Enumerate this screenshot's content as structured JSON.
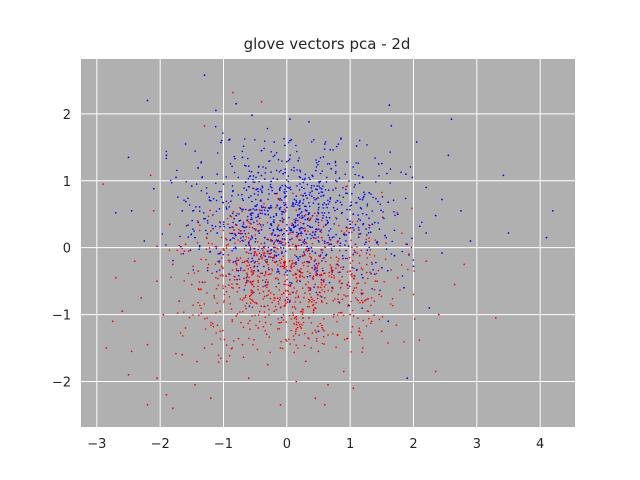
{
  "chart_data": {
    "type": "scatter",
    "title": "glove vectors pca - 2d",
    "xlabel": "",
    "ylabel": "",
    "xlim": [
      -3.25,
      4.55
    ],
    "ylim": [
      -2.68,
      2.82
    ],
    "xticks": [
      -3,
      -2,
      -1,
      0,
      1,
      2,
      3,
      4
    ],
    "yticks": [
      -2,
      -1,
      0,
      1,
      2
    ],
    "xtick_labels": [
      "−3",
      "−2",
      "−1",
      "0",
      "1",
      "2",
      "3",
      "4"
    ],
    "ytick_labels": [
      "−2",
      "−1",
      "0",
      "1",
      "2"
    ],
    "grid": true,
    "background_color": "#b0b0b0",
    "grid_color": "#ffffff",
    "series": [
      {
        "color": "#0000ff",
        "points": [
          [
            -1.3,
            2.58
          ],
          [
            -2.2,
            2.2
          ],
          [
            -0.8,
            2.15
          ],
          [
            1.62,
            2.13
          ],
          [
            -1.12,
            2.05
          ],
          [
            -0.55,
            1.98
          ],
          [
            0.05,
            1.92
          ],
          [
            0.35,
            1.88
          ],
          [
            2.6,
            1.92
          ],
          [
            1.65,
            1.82
          ],
          [
            -1.6,
            1.55
          ],
          [
            -0.9,
            1.62
          ],
          [
            -0.2,
            1.58
          ],
          [
            0.6,
            1.55
          ],
          [
            1.1,
            1.52
          ],
          [
            2.05,
            1.58
          ],
          [
            -1.9,
            1.38
          ],
          [
            -1.35,
            1.28
          ],
          [
            -0.7,
            1.35
          ],
          [
            0.18,
            1.3
          ],
          [
            0.95,
            1.28
          ],
          [
            1.45,
            1.25
          ],
          [
            2.55,
            1.38
          ],
          [
            -2.5,
            1.35
          ],
          [
            -1.75,
            1.05
          ],
          [
            -1.1,
            1.1
          ],
          [
            -0.45,
            1.12
          ],
          [
            0.4,
            1.08
          ],
          [
            1.2,
            1.05
          ],
          [
            1.88,
            1.1
          ],
          [
            3.42,
            1.08
          ],
          [
            -2.1,
            0.88
          ],
          [
            -1.5,
            0.92
          ],
          [
            -0.85,
            0.85
          ],
          [
            -0.1,
            0.9
          ],
          [
            0.55,
            0.88
          ],
          [
            1.3,
            0.82
          ],
          [
            2.2,
            0.9
          ],
          [
            -1.2,
            0.7
          ],
          [
            -0.6,
            0.75
          ],
          [
            0.12,
            0.72
          ],
          [
            0.8,
            0.7
          ],
          [
            1.6,
            0.68
          ],
          [
            2.45,
            0.72
          ],
          [
            -2.7,
            0.52
          ],
          [
            -2.45,
            0.55
          ],
          [
            -1.65,
            0.55
          ],
          [
            -0.95,
            0.58
          ],
          [
            -0.3,
            0.55
          ],
          [
            0.35,
            0.52
          ],
          [
            1.05,
            0.5
          ],
          [
            1.75,
            0.5
          ],
          [
            2.35,
            0.48
          ],
          [
            2.75,
            0.55
          ],
          [
            4.2,
            0.55
          ],
          [
            -1.4,
            0.38
          ],
          [
            -0.75,
            0.4
          ],
          [
            -0.05,
            0.42
          ],
          [
            0.65,
            0.38
          ],
          [
            1.35,
            0.35
          ],
          [
            2.1,
            0.32
          ],
          [
            -1.1,
            0.22
          ],
          [
            -0.45,
            0.25
          ],
          [
            0.2,
            0.28
          ],
          [
            0.9,
            0.2
          ],
          [
            1.55,
            0.18
          ],
          [
            2.2,
            0.22
          ],
          [
            3.5,
            0.22
          ],
          [
            -0.6,
            0.08
          ],
          [
            0.05,
            0.12
          ],
          [
            0.7,
            0.05
          ],
          [
            1.25,
            0.08
          ],
          [
            1.9,
            0.05
          ],
          [
            2.9,
            0.1
          ],
          [
            -2.25,
            0.1
          ],
          [
            4.1,
            0.15
          ],
          [
            -0.2,
            -0.05
          ],
          [
            0.45,
            -0.08
          ],
          [
            1.05,
            -0.1
          ],
          [
            1.7,
            -0.12
          ],
          [
            2.45,
            -0.08
          ],
          [
            0.8,
            -0.25
          ],
          [
            1.5,
            -0.3
          ],
          [
            2.0,
            -0.28
          ],
          [
            1.2,
            -0.45
          ],
          [
            1.85,
            -0.6
          ],
          [
            2.25,
            -0.9
          ],
          [
            1.6,
            -1.1
          ],
          [
            0.5,
            -1.25
          ],
          [
            1.9,
            -1.95
          ],
          [
            -0.5,
            0.62
          ],
          [
            -0.25,
            0.35
          ],
          [
            0.0,
            0.6
          ],
          [
            0.25,
            0.45
          ],
          [
            -0.35,
            0.15
          ],
          [
            0.15,
            0.02
          ],
          [
            -0.8,
            0.48
          ],
          [
            0.5,
            0.65
          ],
          [
            -0.15,
            1.02
          ],
          [
            0.3,
            0.78
          ],
          [
            -0.65,
            0.98
          ],
          [
            1.0,
            0.35
          ],
          [
            -1.0,
            0.95
          ],
          [
            0.7,
            1.18
          ],
          [
            -0.4,
            1.45
          ],
          [
            0.05,
            1.6
          ],
          [
            -1.45,
            0.15
          ],
          [
            -0.9,
            0.3
          ]
        ]
      },
      {
        "color": "#ff0000",
        "points": [
          [
            -0.85,
            2.32
          ],
          [
            -0.4,
            2.18
          ],
          [
            -2.15,
            1.08
          ],
          [
            -1.3,
            1.82
          ],
          [
            -2.9,
            0.95
          ],
          [
            -2.1,
            0.55
          ],
          [
            -1.85,
            0.35
          ],
          [
            -1.2,
            0.25
          ],
          [
            -0.65,
            0.3
          ],
          [
            0.05,
            0.22
          ],
          [
            0.55,
            0.15
          ],
          [
            -2.05,
            0.02
          ],
          [
            -1.55,
            -0.05
          ],
          [
            -1.0,
            -0.02
          ],
          [
            -0.35,
            -0.08
          ],
          [
            0.25,
            -0.12
          ],
          [
            -2.4,
            -0.2
          ],
          [
            -1.8,
            -0.25
          ],
          [
            -1.25,
            -0.3
          ],
          [
            -0.7,
            -0.22
          ],
          [
            -0.1,
            -0.28
          ],
          [
            0.4,
            -0.3
          ],
          [
            1.0,
            -0.35
          ],
          [
            2.8,
            -0.25
          ],
          [
            -2.7,
            -0.45
          ],
          [
            -2.05,
            -0.5
          ],
          [
            -1.5,
            -0.55
          ],
          [
            -0.9,
            -0.48
          ],
          [
            -0.3,
            -0.52
          ],
          [
            0.3,
            -0.55
          ],
          [
            0.85,
            -0.6
          ],
          [
            1.4,
            -0.5
          ],
          [
            2.65,
            -0.55
          ],
          [
            -2.3,
            -0.75
          ],
          [
            -1.7,
            -0.8
          ],
          [
            -1.15,
            -0.72
          ],
          [
            -0.55,
            -0.78
          ],
          [
            0.05,
            -0.8
          ],
          [
            0.6,
            -0.75
          ],
          [
            1.2,
            -0.82
          ],
          [
            2.0,
            -0.7
          ],
          [
            -2.6,
            -0.95
          ],
          [
            -1.95,
            -1.0
          ],
          [
            -1.35,
            -0.98
          ],
          [
            -0.8,
            -1.02
          ],
          [
            -0.2,
            -0.95
          ],
          [
            0.35,
            -1.05
          ],
          [
            1.0,
            -1.0
          ],
          [
            2.4,
            -1.0
          ],
          [
            3.3,
            -1.05
          ],
          [
            -2.75,
            -1.1
          ],
          [
            -1.6,
            -1.2
          ],
          [
            -1.05,
            -1.25
          ],
          [
            -0.45,
            -1.2
          ],
          [
            0.15,
            -1.22
          ],
          [
            0.8,
            -1.3
          ],
          [
            1.5,
            -1.25
          ],
          [
            -2.2,
            -1.45
          ],
          [
            -1.3,
            -1.5
          ],
          [
            -0.7,
            -1.45
          ],
          [
            -0.1,
            -1.5
          ],
          [
            0.5,
            -1.55
          ],
          [
            1.2,
            -1.5
          ],
          [
            -2.85,
            -1.5
          ],
          [
            -2.45,
            -1.55
          ],
          [
            -1.65,
            -1.6
          ],
          [
            -0.95,
            -1.7
          ],
          [
            -0.3,
            -1.75
          ],
          [
            0.3,
            -1.7
          ],
          [
            0.9,
            -1.85
          ],
          [
            -2.5,
            -1.9
          ],
          [
            -2.05,
            -1.95
          ],
          [
            -1.45,
            -2.05
          ],
          [
            -0.6,
            -1.95
          ],
          [
            0.15,
            -2.0
          ],
          [
            0.65,
            -2.05
          ],
          [
            1.05,
            -2.1
          ],
          [
            -1.9,
            -2.2
          ],
          [
            -1.2,
            -2.25
          ],
          [
            0.45,
            -2.25
          ],
          [
            -2.2,
            -2.35
          ],
          [
            -0.1,
            -2.35
          ],
          [
            -1.8,
            -2.4
          ],
          [
            0.6,
            -2.35
          ],
          [
            2.35,
            -1.85
          ],
          [
            -0.45,
            -0.35
          ],
          [
            -0.2,
            -0.15
          ],
          [
            0.15,
            -0.45
          ],
          [
            0.6,
            -0.38
          ],
          [
            -0.75,
            -0.6
          ],
          [
            -0.05,
            -0.68
          ],
          [
            0.45,
            -0.9
          ],
          [
            -0.6,
            0.05
          ],
          [
            -1.4,
            -0.35
          ],
          [
            1.15,
            -0.12
          ],
          [
            0.95,
            -0.55
          ],
          [
            -0.25,
            0.12
          ],
          [
            0.3,
            0.08
          ],
          [
            -0.95,
            0.12
          ],
          [
            1.75,
            -0.45
          ],
          [
            -1.6,
            0.05
          ],
          [
            2.2,
            -0.2
          ]
        ]
      }
    ]
  }
}
